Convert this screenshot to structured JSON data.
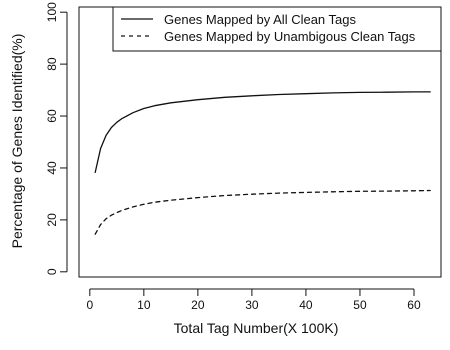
{
  "chart_data": {
    "type": "line",
    "title": "",
    "xlabel": "Total Tag Number(X 100K)",
    "ylabel": "Percentage of Genes Identified(%)",
    "xlim": [
      -2,
      65
    ],
    "ylim": [
      -2,
      102
    ],
    "xticks": [
      0,
      10,
      20,
      30,
      40,
      50,
      60
    ],
    "yticks": [
      0,
      20,
      40,
      60,
      80,
      100
    ],
    "grid": false,
    "legend": "top-right",
    "series": [
      {
        "name": "Genes Mapped by All Clean Tags",
        "line_style": "solid",
        "color": "#111111",
        "x": [
          1,
          2,
          3,
          4,
          5,
          6,
          8,
          10,
          12,
          15,
          20,
          25,
          30,
          35,
          40,
          45,
          50,
          55,
          60,
          63
        ],
        "y": [
          38.3,
          47.5,
          52.5,
          55.6,
          57.6,
          59.1,
          61.3,
          62.9,
          64.0,
          65.1,
          66.3,
          67.2,
          67.8,
          68.3,
          68.6,
          68.9,
          69.1,
          69.2,
          69.3,
          69.3
        ]
      },
      {
        "name": "Genes Mapped by Unambigous Clean Tags",
        "line_style": "dashed",
        "color": "#111111",
        "x": [
          1,
          2,
          3,
          4,
          5,
          6,
          8,
          10,
          12,
          15,
          20,
          25,
          30,
          35,
          40,
          45,
          50,
          55,
          60,
          63
        ],
        "y": [
          14.5,
          18.2,
          20.4,
          21.8,
          22.8,
          23.7,
          25.0,
          26.0,
          26.8,
          27.6,
          28.6,
          29.4,
          29.9,
          30.3,
          30.6,
          30.8,
          31.0,
          31.1,
          31.2,
          31.3
        ]
      }
    ]
  }
}
